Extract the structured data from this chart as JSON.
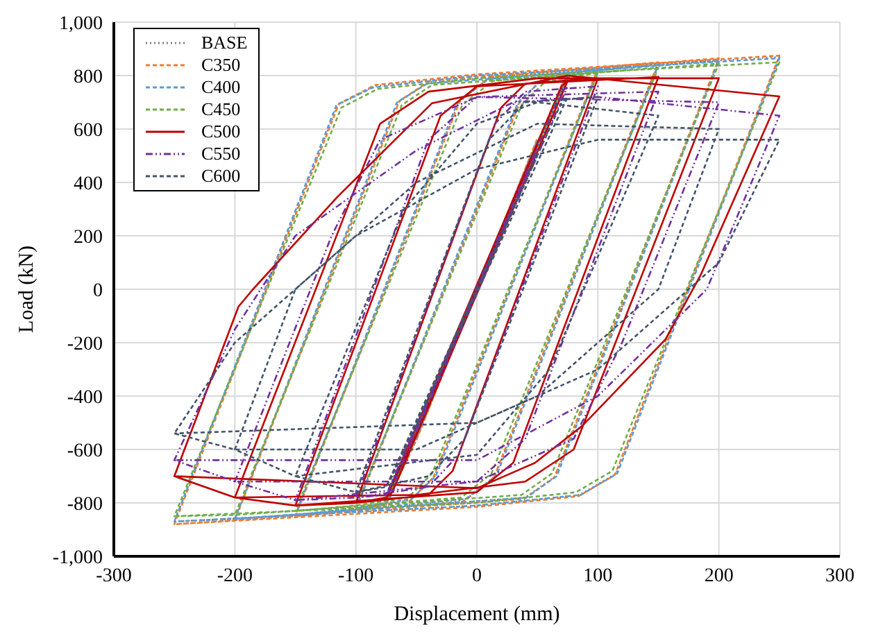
{
  "chart_data": {
    "type": "line",
    "xlabel": "Displacement (mm)",
    "ylabel": "Load (kN)",
    "xlim": [
      -300,
      300
    ],
    "xticks": [
      -300,
      -200,
      -100,
      0,
      100,
      200,
      300
    ],
    "ylim": [
      -1000,
      1000
    ],
    "yticks": [
      {
        "value": -1000,
        "label": "-1,000"
      },
      -800,
      -600,
      -400,
      -200,
      0,
      200,
      400,
      600,
      800,
      {
        "value": 1000,
        "label": "1,000"
      }
    ],
    "grid": true,
    "legend": "top left",
    "marker": "none",
    "series": [
      {
        "name": "BASE",
        "color": "#7f7f7f",
        "line_style": "dotted",
        "x": [
          -50,
          50,
          -50,
          -75,
          70,
          75,
          -70,
          -75,
          -100,
          35,
          55,
          100,
          -35,
          -55,
          -100,
          -150,
          -15,
          10,
          150,
          15,
          -10,
          -150,
          -200,
          -65,
          -40,
          200,
          65,
          40,
          -200,
          -250,
          -115,
          -85,
          0,
          250,
          115,
          85,
          0,
          -250
        ],
        "values": [
          -560,
          560,
          -560,
          -800,
          760,
          800,
          -760,
          -800,
          -820,
          700,
          790,
          820,
          -700,
          -790,
          -820,
          -845,
          700,
          790,
          845,
          -700,
          -790,
          -845,
          -860,
          700,
          775,
          860,
          -700,
          -780,
          -860,
          -870,
          690,
          760,
          800,
          870,
          -690,
          -770,
          -810,
          -870
        ]
      },
      {
        "name": "C350",
        "color": "#ed7d31",
        "line_style": "dashed",
        "x": [
          -50,
          50,
          -50,
          -75,
          70,
          75,
          -70,
          -75,
          -100,
          36,
          56,
          100,
          -36,
          -56,
          -100,
          -150,
          -14,
          11,
          150,
          14,
          -11,
          -150,
          -200,
          -64,
          -39,
          200,
          64,
          39,
          -200,
          -250,
          -114,
          -84,
          0,
          250,
          114,
          84,
          0,
          -250
        ],
        "values": [
          -565,
          565,
          -565,
          -805,
          765,
          805,
          -765,
          -805,
          -825,
          705,
          795,
          825,
          -705,
          -795,
          -825,
          -850,
          705,
          795,
          850,
          -705,
          -795,
          -850,
          -865,
          705,
          780,
          865,
          -705,
          -785,
          -865,
          -880,
          695,
          765,
          805,
          875,
          -695,
          -775,
          -815,
          -880
        ]
      },
      {
        "name": "C400",
        "color": "#5b9bd5",
        "line_style": "dashed",
        "x": [
          -50,
          50,
          -50,
          -75,
          70,
          75,
          -70,
          -75,
          -100,
          34,
          54,
          100,
          -34,
          -54,
          -100,
          -150,
          -16,
          9,
          150,
          16,
          -9,
          -150,
          -200,
          -66,
          -41,
          200,
          66,
          41,
          -200,
          -250,
          -116,
          -86,
          0,
          250,
          116,
          86,
          0,
          -250
        ],
        "values": [
          -555,
          555,
          -555,
          -800,
          760,
          800,
          -760,
          -800,
          -820,
          700,
          785,
          815,
          -700,
          -785,
          -820,
          -845,
          700,
          785,
          840,
          -700,
          -785,
          -845,
          -860,
          700,
          770,
          855,
          -700,
          -780,
          -860,
          -870,
          690,
          755,
          800,
          865,
          -690,
          -770,
          -810,
          -870
        ]
      },
      {
        "name": "C450",
        "color": "#70ad47",
        "line_style": "dashed",
        "x": [
          -50,
          50,
          -50,
          -75,
          70,
          75,
          -70,
          -75,
          -100,
          37,
          57,
          100,
          -37,
          -57,
          -100,
          -150,
          -12,
          13,
          150,
          12,
          -13,
          -150,
          -200,
          -62,
          -37,
          200,
          62,
          37,
          -200,
          -250,
          -112,
          -82,
          0,
          250,
          112,
          82,
          0,
          -250
        ],
        "values": [
          -550,
          550,
          -550,
          -790,
          750,
          790,
          -750,
          -790,
          -810,
          690,
          780,
          810,
          -690,
          -780,
          -810,
          -830,
          690,
          780,
          830,
          -690,
          -780,
          -830,
          -845,
          690,
          765,
          845,
          -690,
          -770,
          -845,
          -850,
          680,
          750,
          790,
          850,
          -680,
          -760,
          -800,
          -850
        ]
      },
      {
        "name": "C500",
        "color": "#c00000",
        "line_style": "solid",
        "x": [
          -50,
          50,
          -50,
          -75,
          70,
          75,
          -70,
          -75,
          -100,
          20,
          40,
          100,
          -20,
          -40,
          -100,
          -150,
          -30,
          0,
          150,
          30,
          0,
          -150,
          -200,
          -80,
          -40,
          50,
          200,
          80,
          40,
          -50,
          -200,
          -250,
          -197,
          -185,
          -115,
          -37,
          75,
          250,
          185,
          156,
          87,
          48,
          0,
          -250
        ],
        "values": [
          -540,
          540,
          -540,
          -780,
          760,
          780,
          -760,
          -780,
          -800,
          680,
          770,
          790,
          -680,
          -770,
          -800,
          -810,
          650,
          760,
          795,
          -650,
          -760,
          -810,
          -780,
          620,
          740,
          790,
          790,
          -600,
          -720,
          -770,
          -780,
          -700,
          -65,
          0,
          347,
          697,
          800,
          722,
          54,
          -187,
          -512,
          -650,
          -745,
          -700
        ]
      },
      {
        "name": "C550",
        "color": "#7030a0",
        "line_style": "dashed",
        "x": [
          -50,
          50,
          -50,
          -75,
          70,
          75,
          -70,
          -75,
          -100,
          15,
          40,
          100,
          -15,
          -40,
          -100,
          -150,
          -40,
          0,
          150,
          40,
          0,
          -150,
          -200,
          -120,
          -80,
          0,
          200,
          120,
          80,
          0,
          -200,
          -250,
          -200,
          -150,
          -50,
          30,
          100,
          250,
          190,
          100,
          0,
          -250
        ],
        "values": [
          -520,
          520,
          -520,
          -770,
          740,
          760,
          -740,
          -770,
          -780,
          620,
          740,
          760,
          -620,
          -740,
          -780,
          -790,
          560,
          720,
          740,
          -560,
          -720,
          -790,
          -720,
          200,
          560,
          720,
          700,
          -200,
          -560,
          -720,
          -720,
          -640,
          -150,
          200,
          520,
          700,
          720,
          650,
          0,
          -400,
          -640,
          -640
        ]
      },
      {
        "name": "C600",
        "color": "#44546a",
        "line_style": "dashed",
        "x": [
          -50,
          50,
          -50,
          -75,
          70,
          75,
          -70,
          -75,
          -100,
          10,
          40,
          100,
          -10,
          -40,
          -100,
          -150,
          -60,
          0,
          50,
          150,
          60,
          0,
          -150,
          -200,
          -150,
          -50,
          50,
          200,
          150,
          50,
          -50,
          -200,
          -250,
          -200,
          -100,
          0,
          100,
          250,
          200,
          100,
          0,
          -250
        ],
        "values": [
          -500,
          500,
          -500,
          -740,
          700,
          720,
          -700,
          -740,
          -760,
          560,
          700,
          720,
          -560,
          -700,
          -760,
          -700,
          300,
          620,
          700,
          650,
          -300,
          -620,
          -700,
          -600,
          0,
          400,
          620,
          600,
          0,
          -400,
          -600,
          -600,
          -540,
          -200,
          200,
          450,
          560,
          560,
          100,
          -300,
          -500,
          -540
        ]
      }
    ]
  }
}
